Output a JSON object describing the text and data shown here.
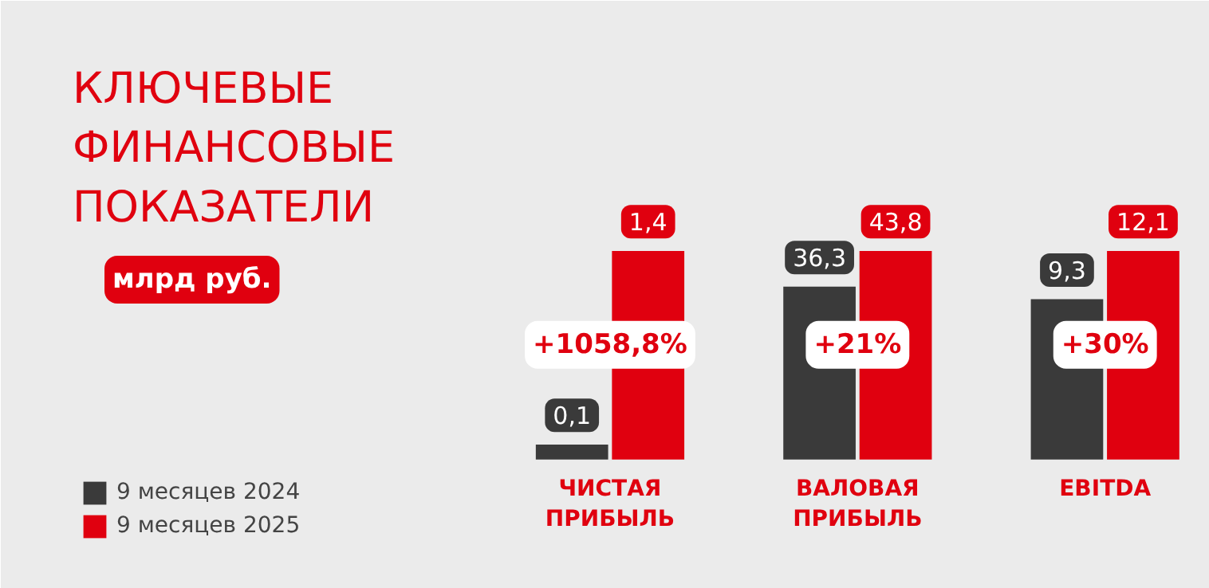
{
  "chart_data": [
    {
      "type": "other",
      "title": "КЛЮЧЕВЫЕ ФИНАНСОВЫЕ ПОКАЗАТЕЛИ",
      "subtitle": "млрд руб."
    },
    {
      "type": "bar",
      "categories": [
        "ЧИСТАЯ ПРИБЫЛЬ"
      ],
      "legend": "bottom left",
      "data_labels": true,
      "annotations": [
        "+1058,8%"
      ],
      "series": [
        {
          "name": "9 месяцев 2024",
          "color": "#3a3a3a",
          "values": [
            0.1
          ],
          "value_labels": [
            "0,1"
          ]
        },
        {
          "name": "9 месяцев 2025",
          "color": "#e0000f",
          "values": [
            1.4
          ],
          "value_labels": [
            "1,4"
          ]
        }
      ]
    },
    {
      "type": "bar",
      "categories": [
        "ВАЛОВАЯ ПРИБЫЛЬ"
      ],
      "data_labels": true,
      "annotations": [
        "+21%"
      ],
      "series": [
        {
          "color": "#3a3a3a",
          "values": [
            36.3
          ],
          "value_labels": [
            "36,3"
          ]
        },
        {
          "color": "#e0000f",
          "values": [
            43.8
          ],
          "value_labels": [
            "43,8"
          ]
        }
      ]
    },
    {
      "type": "bar",
      "categories": [
        "EBITDA"
      ],
      "data_labels": true,
      "annotations": [
        "+30%"
      ],
      "series": [
        {
          "color": "#3a3a3a",
          "values": [
            9.3
          ],
          "value_labels": [
            "9,3"
          ]
        },
        {
          "color": "#e0000f",
          "values": [
            12.1
          ],
          "value_labels": [
            "12,1"
          ]
        }
      ]
    }
  ]
}
